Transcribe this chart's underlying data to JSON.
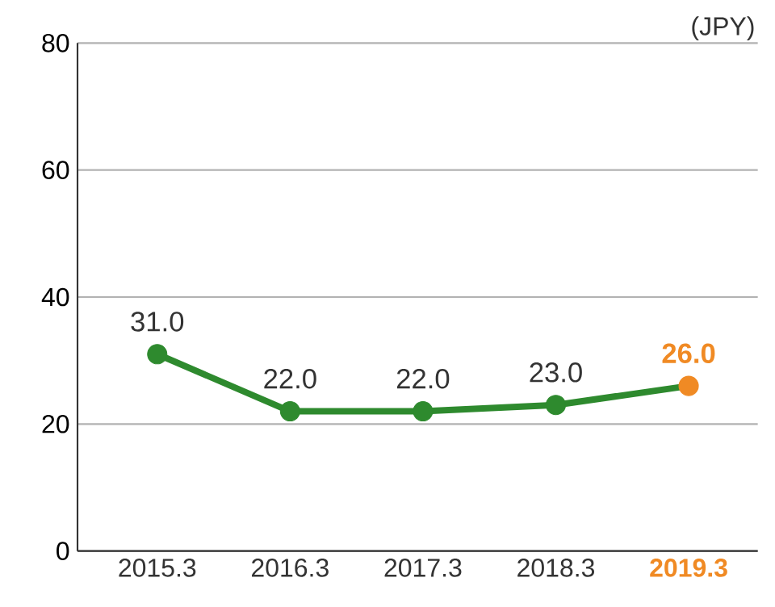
{
  "chart_data": {
    "type": "line",
    "ylabel": "(JPY)",
    "categories": [
      "2015.3",
      "2016.3",
      "2017.3",
      "2018.3",
      "2019.3"
    ],
    "values": [
      31,
      22,
      22,
      23,
      26
    ],
    "value_labels": [
      "31.0",
      "22.0",
      "22.0",
      "23.0",
      "26.0"
    ],
    "color": "#2e8a2e",
    "colors": [
      "#2e8a2e",
      "#2e8a2e",
      "#2e8a2e",
      "#2e8a2e",
      "#f08a24"
    ],
    "ylim": [
      0,
      80
    ],
    "yticks": [
      0,
      20,
      40,
      60,
      80
    ],
    "grid": "y",
    "marker": "circle",
    "line_style": "solid"
  }
}
